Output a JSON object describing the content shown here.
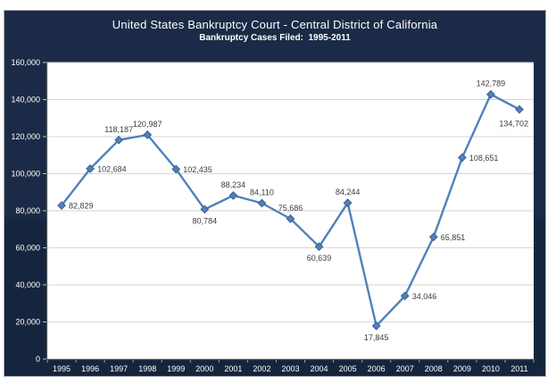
{
  "header": {
    "title": "United States Bankruptcy Court - Central District of California",
    "subtitle": "Bankruptcy Cases Filed:  1995-2011"
  },
  "chart_data": {
    "type": "line",
    "title": "United States Bankruptcy Court - Central District of California",
    "subtitle": "Bankruptcy Cases Filed:  1995-2011",
    "categories": [
      "1995",
      "1996",
      "1997",
      "1998",
      "1999",
      "2000",
      "2001",
      "2002",
      "2003",
      "2004",
      "2005",
      "2006",
      "2007",
      "2008",
      "2009",
      "2010",
      "2011"
    ],
    "values": [
      82829,
      102684,
      118187,
      120987,
      102435,
      80784,
      88234,
      84110,
      75686,
      60639,
      84244,
      17845,
      34046,
      65851,
      108651,
      142789,
      134702
    ],
    "point_labels": [
      "82,829",
      "102,684",
      "118,187",
      "120,987",
      "102,435",
      "80,784",
      "88,234",
      "84,110",
      "75,686",
      "60,639",
      "84,244",
      "17,845",
      "34,046",
      "65,851",
      "108,651",
      "142,789",
      "134,702"
    ],
    "label_placements": [
      "right",
      "right",
      "above",
      "above",
      "right",
      "below",
      "above",
      "above",
      "above",
      "below",
      "above",
      "below",
      "right",
      "right",
      "right",
      "above",
      "below-left"
    ],
    "y_ticks": [
      "0",
      "20,000",
      "40,000",
      "60,000",
      "80,000",
      "100,000",
      "120,000",
      "140,000",
      "160,000"
    ],
    "ylim": [
      0,
      160000
    ],
    "y_step": 20000,
    "grid": true,
    "legend": "none",
    "xlabel": "",
    "ylabel": ""
  },
  "colors": {
    "chart_bg_top": "#1B2A46",
    "chart_bg_bottom": "#16253E",
    "plot_bg": "#FFFFFF",
    "line": "#4F81BD",
    "marker_fill": "#4F81BD",
    "marker_stroke": "#3A6191",
    "gridline": "#D6D6D6",
    "axis_line": "#555555",
    "y_tick": "#C2C2CA",
    "x_tick": "#9AA1AE",
    "axis_text": "#FFFFFF",
    "data_label": "#3D3D3D",
    "title_text": "#FFFFFF"
  }
}
